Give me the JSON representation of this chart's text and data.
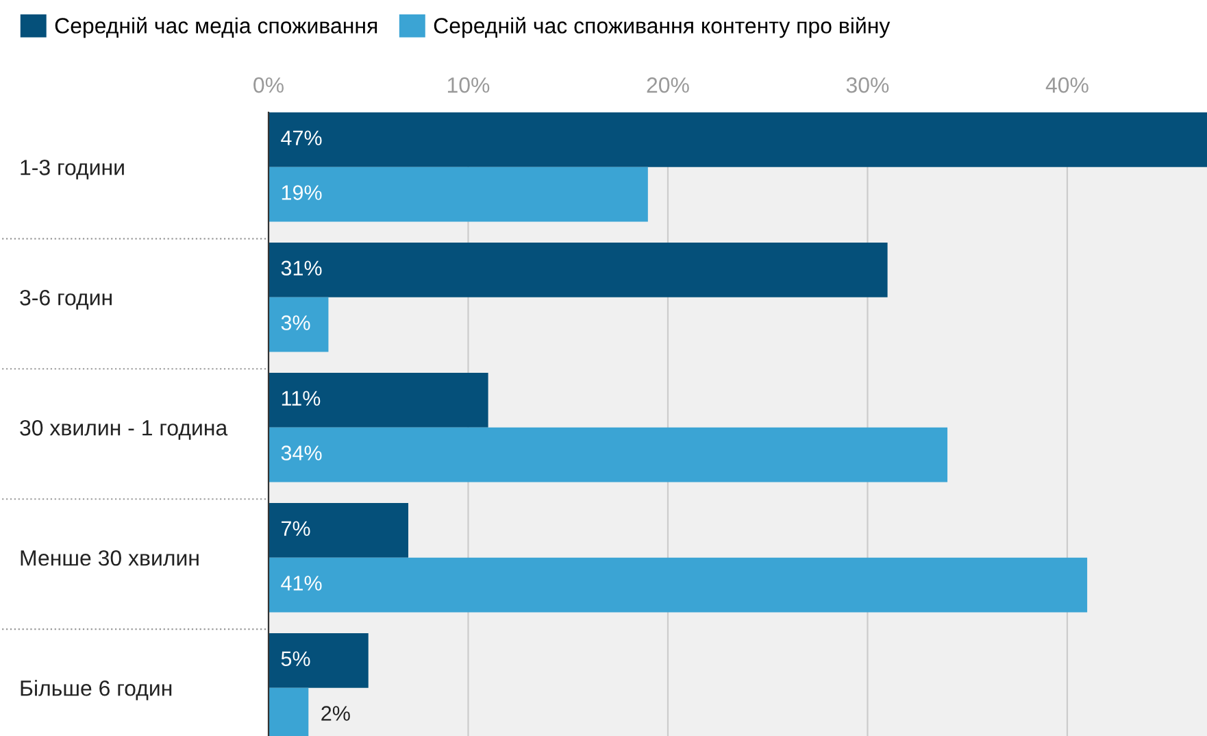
{
  "chart_data": {
    "type": "bar",
    "orientation": "horizontal",
    "categories": [
      "1-3 години",
      "3-6 годин",
      "30 хвилин - 1 година",
      "Менше 30 хвилин",
      "Більше 6 годин"
    ],
    "series": [
      {
        "name": "Середній час медіа споживання",
        "color": "#05507a",
        "values": [
          47,
          31,
          11,
          7,
          5
        ],
        "value_labels": [
          "47%",
          "31%",
          "11%",
          "7%",
          "5%"
        ]
      },
      {
        "name": "Середній час споживання контенту про війну",
        "color": "#3ba4d4",
        "values": [
          19,
          3,
          34,
          41,
          2
        ],
        "value_labels": [
          "19%",
          "3%",
          "34%",
          "41%",
          "2%"
        ]
      }
    ],
    "xlim": [
      0,
      47
    ],
    "xticks": [
      {
        "value": 0,
        "label": "0%"
      },
      {
        "value": 10,
        "label": "10%"
      },
      {
        "value": 20,
        "label": "20%"
      },
      {
        "value": 30,
        "label": "30%"
      },
      {
        "value": 40,
        "label": "40%"
      }
    ],
    "grid": "x",
    "legend": "top left"
  }
}
